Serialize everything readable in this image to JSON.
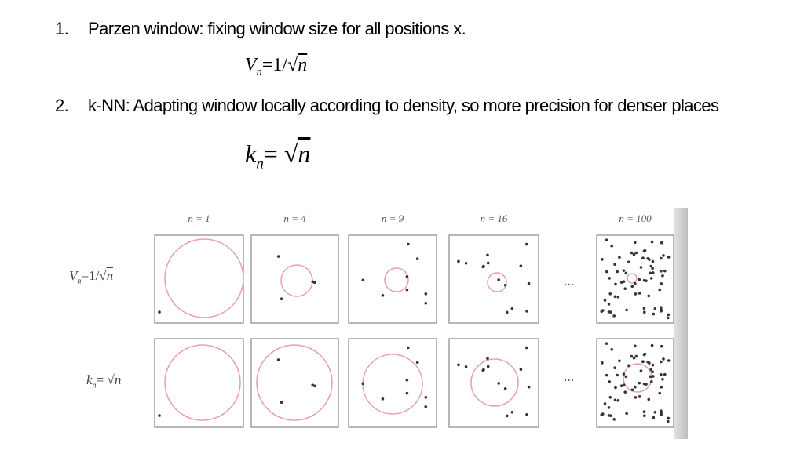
{
  "items": [
    {
      "number": "1.",
      "text": "Parzen window: fixing window size for all positions x.",
      "formula": {
        "lhs": "V",
        "sub": "n",
        "rhs": "=1/√",
        "radicand": "n"
      }
    },
    {
      "number": "2.",
      "text": "k-NN: Adapting window locally according to density, so more precision for denser places",
      "formula": {
        "lhs": "k",
        "sub": "n",
        "rhs": "= √",
        "radicand": "n"
      }
    }
  ],
  "figure": {
    "columns": [
      "n = 1",
      "n = 4",
      "n = 9",
      "n = 16",
      "n = 100"
    ],
    "rows": [
      {
        "lhs": "V",
        "sub": "n",
        "rhs": "=1/√",
        "radicand": "n"
      },
      {
        "lhs": "k",
        "sub": "n",
        "rhs": "= √",
        "radicand": "n"
      }
    ],
    "ellipsis": [
      "...",
      "..."
    ]
  }
}
